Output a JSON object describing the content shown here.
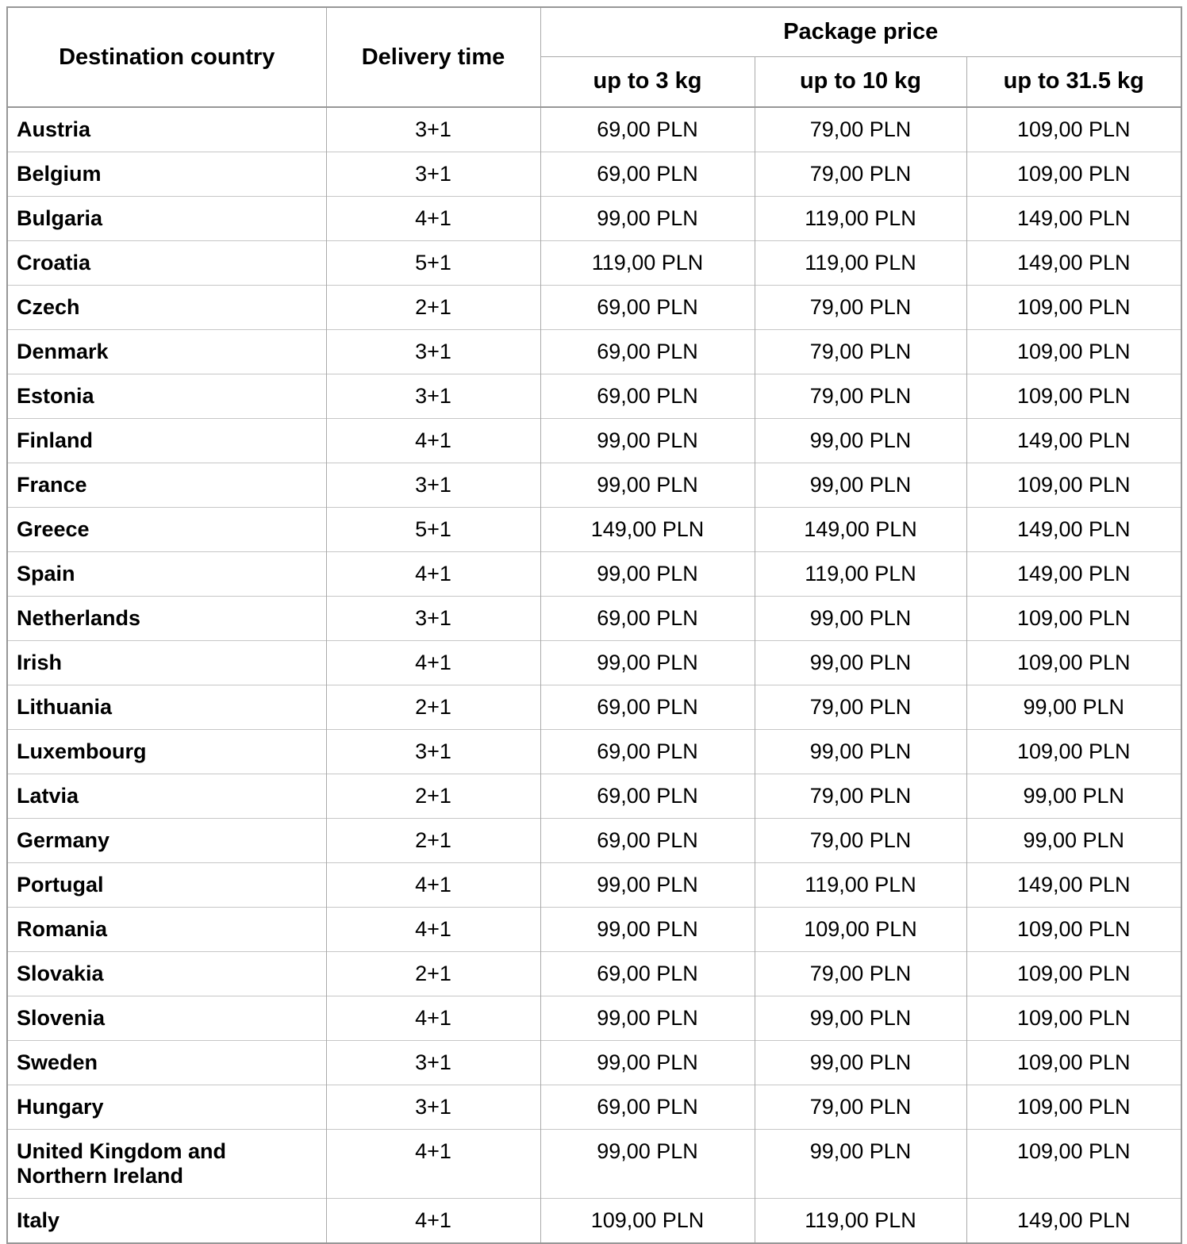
{
  "table": {
    "header": {
      "destination_country": "Destination country",
      "delivery_time": "Delivery time",
      "package_price": "Package price",
      "weight_columns": [
        "up to 3 kg",
        "up to 10 kg",
        "up to 31.5 kg"
      ]
    },
    "rows": [
      {
        "country": "Austria",
        "delivery_time": "3+1",
        "price_3kg": "69,00 PLN",
        "price_10kg": "79,00 PLN",
        "price_31_5kg": "109,00 PLN"
      },
      {
        "country": "Belgium",
        "delivery_time": "3+1",
        "price_3kg": "69,00 PLN",
        "price_10kg": "79,00 PLN",
        "price_31_5kg": "109,00 PLN"
      },
      {
        "country": "Bulgaria",
        "delivery_time": "4+1",
        "price_3kg": "99,00 PLN",
        "price_10kg": "119,00 PLN",
        "price_31_5kg": "149,00 PLN"
      },
      {
        "country": "Croatia",
        "delivery_time": "5+1",
        "price_3kg": "119,00 PLN",
        "price_10kg": "119,00 PLN",
        "price_31_5kg": "149,00 PLN"
      },
      {
        "country": "Czech",
        "delivery_time": "2+1",
        "price_3kg": "69,00 PLN",
        "price_10kg": "79,00 PLN",
        "price_31_5kg": "109,00 PLN"
      },
      {
        "country": "Denmark",
        "delivery_time": "3+1",
        "price_3kg": "69,00 PLN",
        "price_10kg": "79,00 PLN",
        "price_31_5kg": "109,00 PLN"
      },
      {
        "country": "Estonia",
        "delivery_time": "3+1",
        "price_3kg": "69,00 PLN",
        "price_10kg": "79,00 PLN",
        "price_31_5kg": "109,00 PLN"
      },
      {
        "country": "Finland",
        "delivery_time": "4+1",
        "price_3kg": "99,00 PLN",
        "price_10kg": "99,00 PLN",
        "price_31_5kg": "149,00 PLN"
      },
      {
        "country": "France",
        "delivery_time": "3+1",
        "price_3kg": "99,00 PLN",
        "price_10kg": "99,00 PLN",
        "price_31_5kg": "109,00 PLN"
      },
      {
        "country": "Greece",
        "delivery_time": "5+1",
        "price_3kg": "149,00 PLN",
        "price_10kg": "149,00 PLN",
        "price_31_5kg": "149,00 PLN"
      },
      {
        "country": "Spain",
        "delivery_time": "4+1",
        "price_3kg": "99,00 PLN",
        "price_10kg": "119,00 PLN",
        "price_31_5kg": "149,00 PLN"
      },
      {
        "country": "Netherlands",
        "delivery_time": "3+1",
        "price_3kg": "69,00 PLN",
        "price_10kg": "99,00 PLN",
        "price_31_5kg": "109,00 PLN"
      },
      {
        "country": "Irish",
        "delivery_time": "4+1",
        "price_3kg": "99,00 PLN",
        "price_10kg": "99,00 PLN",
        "price_31_5kg": "109,00 PLN"
      },
      {
        "country": "Lithuania",
        "delivery_time": "2+1",
        "price_3kg": "69,00 PLN",
        "price_10kg": "79,00 PLN",
        "price_31_5kg": "99,00 PLN"
      },
      {
        "country": "Luxembourg",
        "delivery_time": "3+1",
        "price_3kg": "69,00 PLN",
        "price_10kg": "99,00 PLN",
        "price_31_5kg": "109,00 PLN"
      },
      {
        "country": "Latvia",
        "delivery_time": "2+1",
        "price_3kg": "69,00 PLN",
        "price_10kg": "79,00 PLN",
        "price_31_5kg": "99,00 PLN"
      },
      {
        "country": "Germany",
        "delivery_time": "2+1",
        "price_3kg": "69,00 PLN",
        "price_10kg": "79,00 PLN",
        "price_31_5kg": "99,00 PLN"
      },
      {
        "country": "Portugal",
        "delivery_time": "4+1",
        "price_3kg": "99,00 PLN",
        "price_10kg": "119,00 PLN",
        "price_31_5kg": "149,00 PLN"
      },
      {
        "country": "Romania",
        "delivery_time": "4+1",
        "price_3kg": "99,00 PLN",
        "price_10kg": "109,00 PLN",
        "price_31_5kg": "109,00 PLN"
      },
      {
        "country": "Slovakia",
        "delivery_time": "2+1",
        "price_3kg": "69,00 PLN",
        "price_10kg": "79,00 PLN",
        "price_31_5kg": "109,00 PLN"
      },
      {
        "country": "Slovenia",
        "delivery_time": "4+1",
        "price_3kg": "99,00 PLN",
        "price_10kg": "99,00 PLN",
        "price_31_5kg": "109,00 PLN"
      },
      {
        "country": "Sweden",
        "delivery_time": "3+1",
        "price_3kg": "99,00 PLN",
        "price_10kg": "99,00 PLN",
        "price_31_5kg": "109,00 PLN"
      },
      {
        "country": "Hungary",
        "delivery_time": "3+1",
        "price_3kg": "69,00 PLN",
        "price_10kg": "79,00 PLN",
        "price_31_5kg": "109,00 PLN"
      },
      {
        "country": "United Kingdom and Northern Ireland",
        "delivery_time": "4+1",
        "price_3kg": "99,00 PLN",
        "price_10kg": "99,00 PLN",
        "price_31_5kg": "109,00 PLN"
      },
      {
        "country": "Italy",
        "delivery_time": "4+1",
        "price_3kg": "109,00 PLN",
        "price_10kg": "119,00 PLN",
        "price_31_5kg": "149,00 PLN"
      }
    ]
  }
}
